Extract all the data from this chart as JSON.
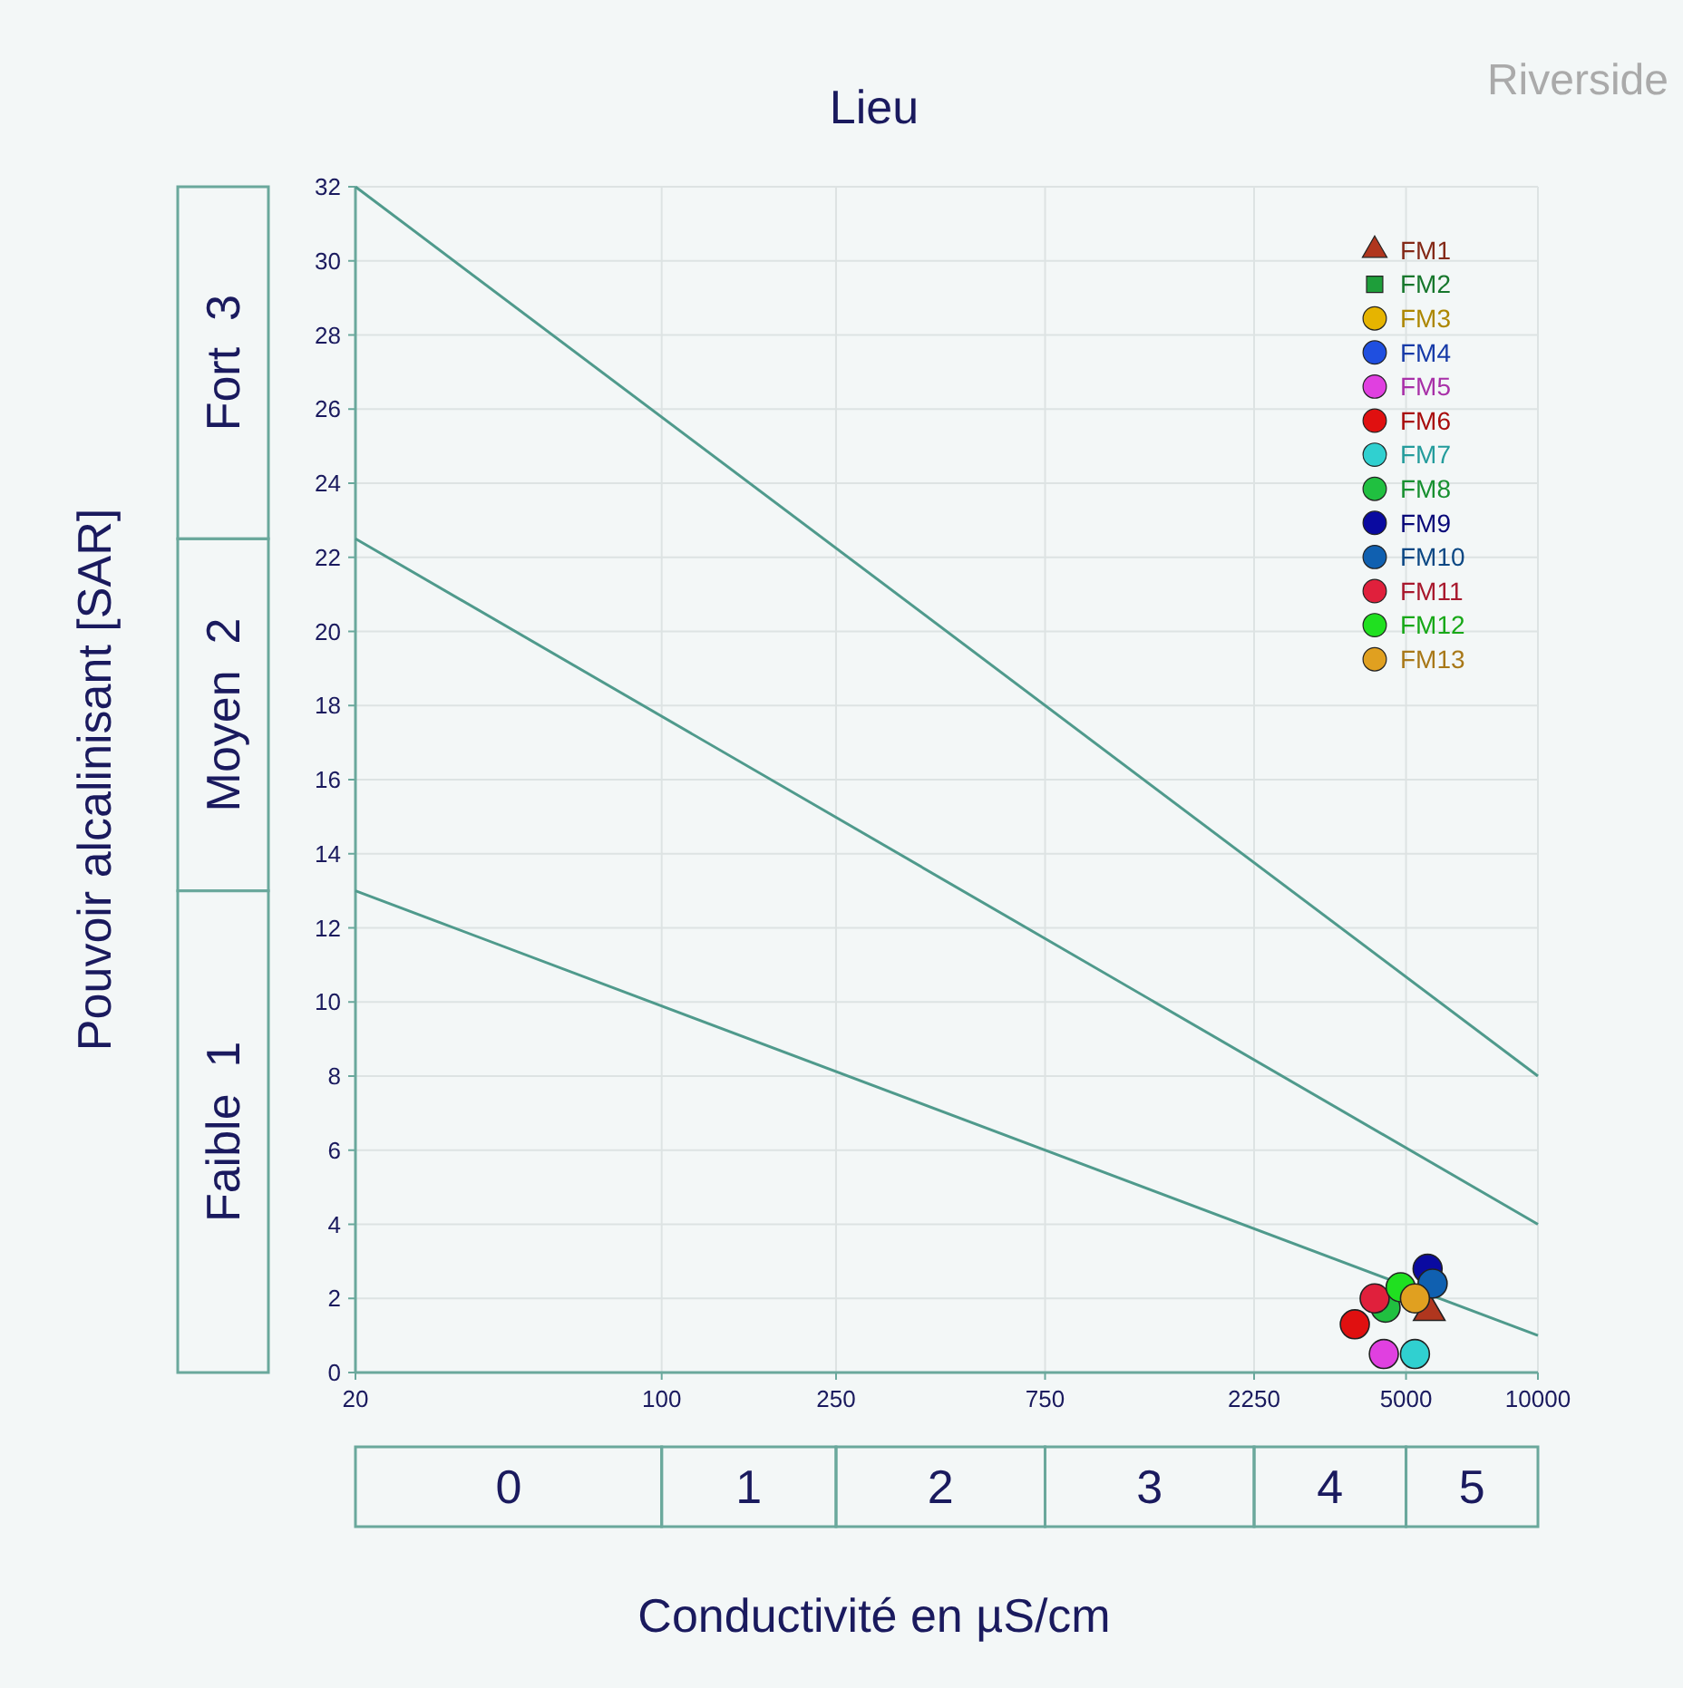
{
  "chart_data": {
    "type": "scatter",
    "title": "Lieu",
    "xlabel": "Conductivité en µS/cm",
    "ylabel": "Pouvoir alcalinisant [SAR]",
    "annotations": [
      "Riverside",
      "0",
      "1",
      "2",
      "3",
      "4",
      "5",
      "Faible  1",
      "Moyen  2",
      "Fort  3"
    ],
    "log": "x",
    "xlim": [
      20,
      10000
    ],
    "xticks": [
      20,
      100,
      250,
      750,
      2250,
      5000,
      10000
    ],
    "ylim": [
      0,
      32
    ],
    "yticks": [
      0,
      2,
      4,
      6,
      8,
      10,
      12,
      14,
      16,
      18,
      20,
      22,
      24,
      26,
      28,
      30,
      32
    ],
    "grid": true,
    "legend": "top right",
    "series": [
      {
        "type": "line",
        "color": "#4f9a8c",
        "x": [
          20,
          10000
        ],
        "values": [
          32,
          8
        ],
        "marker": "none"
      },
      {
        "type": "line",
        "color": "#4f9a8c",
        "x": [
          20,
          10000
        ],
        "values": [
          22.5,
          4
        ],
        "marker": "none"
      },
      {
        "type": "line",
        "color": "#4f9a8c",
        "x": [
          20,
          10000
        ],
        "values": [
          13,
          1
        ],
        "marker": "none"
      },
      {
        "name": "FM1",
        "color": "#b0361e",
        "x": [
          5650
        ],
        "values": [
          1.65
        ],
        "marker": "triangle"
      },
      {
        "name": "FM2",
        "color": "#1e9e3a",
        "x": [
          null
        ],
        "values": [
          null
        ],
        "marker": "square"
      },
      {
        "name": "FM3",
        "color": "#e6b400",
        "x": [
          null
        ],
        "values": [
          null
        ],
        "marker": "circle"
      },
      {
        "name": "FM4",
        "color": "#1f4fe0",
        "x": [
          null
        ],
        "values": [
          null
        ],
        "marker": "circle"
      },
      {
        "name": "FM5",
        "color": "#e040e0",
        "x": [
          4450
        ],
        "values": [
          0.5
        ],
        "marker": "circle"
      },
      {
        "name": "FM6",
        "color": "#e01010",
        "x": [
          3820
        ],
        "values": [
          1.3
        ],
        "marker": "circle"
      },
      {
        "name": "FM7",
        "color": "#30d0d0",
        "x": [
          5240
        ],
        "values": [
          0.5
        ],
        "marker": "circle"
      },
      {
        "name": "FM8",
        "color": "#20c040",
        "x": [
          4490
        ],
        "values": [
          1.75
        ],
        "marker": "circle"
      },
      {
        "name": "FM9",
        "color": "#0a0aa0",
        "x": [
          5600
        ],
        "values": [
          2.8
        ],
        "marker": "circle"
      },
      {
        "name": "FM10",
        "color": "#1060b0",
        "x": [
          5750
        ],
        "values": [
          2.4
        ],
        "marker": "circle"
      },
      {
        "name": "FM11",
        "color": "#e0203c",
        "x": [
          4240
        ],
        "values": [
          2.0
        ],
        "marker": "circle"
      },
      {
        "name": "FM12",
        "color": "#20e020",
        "x": [
          4860
        ],
        "values": [
          2.3
        ],
        "marker": "circle"
      },
      {
        "name": "FM13",
        "color": "#e0a020",
        "x": [
          5240
        ],
        "values": [
          2.0
        ],
        "marker": "circle"
      }
    ]
  }
}
